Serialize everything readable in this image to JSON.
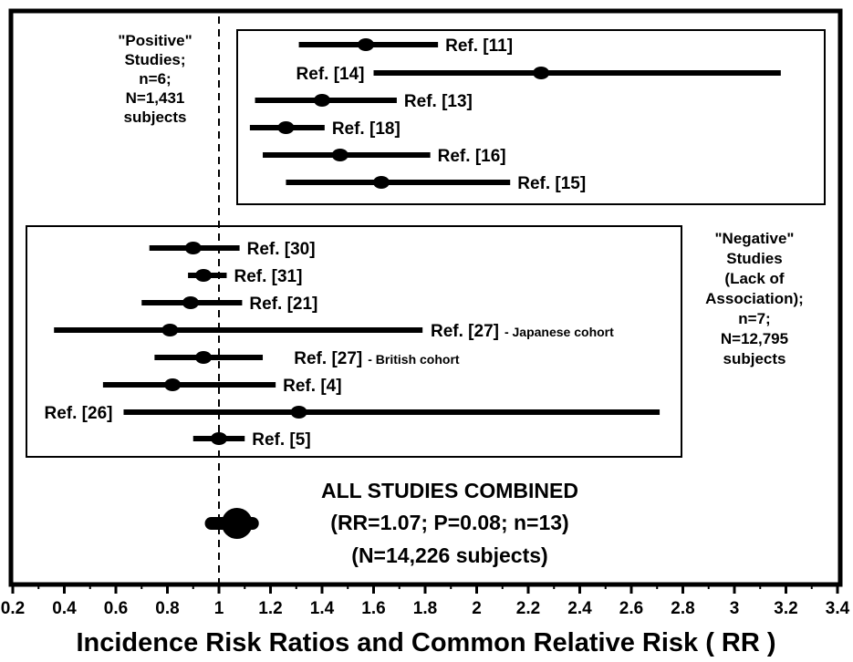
{
  "chart_data": {
    "type": "forest",
    "xlabel": "Incidence Risk Ratios and Common Relative Risk ( RR )",
    "xlim": [
      0.2,
      3.4
    ],
    "x_ticks": [
      "0.2",
      "0.4",
      "0.6",
      "0.8",
      "1",
      "1.2",
      "1.4",
      "1.6",
      "1.8",
      "2",
      "2.2",
      "2.4",
      "2.6",
      "2.8",
      "3",
      "3.2",
      "3.4"
    ],
    "reference_line": 1,
    "groups": [
      {
        "id": "positive",
        "label_lines": [
          "\"Positive\"",
          "Studies;",
          "n=6;",
          "N=1,431",
          "subjects"
        ],
        "studies": [
          {
            "label": "Ref. [11]",
            "rr": 1.57,
            "low": 1.31,
            "high": 1.85
          },
          {
            "label": "Ref. [14]",
            "rr": 2.25,
            "low": 1.6,
            "high": 3.18
          },
          {
            "label": "Ref. [13]",
            "rr": 1.4,
            "low": 1.14,
            "high": 1.69
          },
          {
            "label": "Ref. [18]",
            "rr": 1.26,
            "low": 1.12,
            "high": 1.41
          },
          {
            "label": "Ref. [16]",
            "rr": 1.47,
            "low": 1.17,
            "high": 1.82
          },
          {
            "label": "Ref. [15]",
            "rr": 1.63,
            "low": 1.26,
            "high": 2.13
          }
        ]
      },
      {
        "id": "negative",
        "label_lines": [
          "\"Negative\"",
          "Studies",
          "(Lack of",
          "Association);",
          "n=7;",
          "N=12,795",
          "subjects"
        ],
        "studies": [
          {
            "label": "Ref. [30]",
            "rr": 0.9,
            "low": 0.73,
            "high": 1.08
          },
          {
            "label": "Ref. [31]",
            "rr": 0.94,
            "low": 0.88,
            "high": 1.03
          },
          {
            "label": "Ref. [21]",
            "rr": 0.89,
            "low": 0.7,
            "high": 1.09
          },
          {
            "label": "Ref. [27]",
            "note": "- Japanese cohort",
            "rr": 0.81,
            "low": 0.36,
            "high": 1.79
          },
          {
            "label": "Ref. [27]",
            "note": "- British cohort",
            "rr": 0.94,
            "low": 0.75,
            "high": 1.17
          },
          {
            "label": "Ref. [4]",
            "rr": 0.82,
            "low": 0.55,
            "high": 1.22
          },
          {
            "label": "Ref. [26]",
            "rr": 1.31,
            "low": 0.63,
            "high": 2.71
          },
          {
            "label": "Ref. [5]",
            "rr": 1.0,
            "low": 0.9,
            "high": 1.1
          }
        ]
      }
    ],
    "combined": {
      "rr": 1.07,
      "low": 0.97,
      "high": 1.13,
      "title": "ALL STUDIES COMBINED",
      "stats": "(RR=1.07; P=0.08; n=13)",
      "subjects": "(N=14,226 subjects)"
    }
  }
}
